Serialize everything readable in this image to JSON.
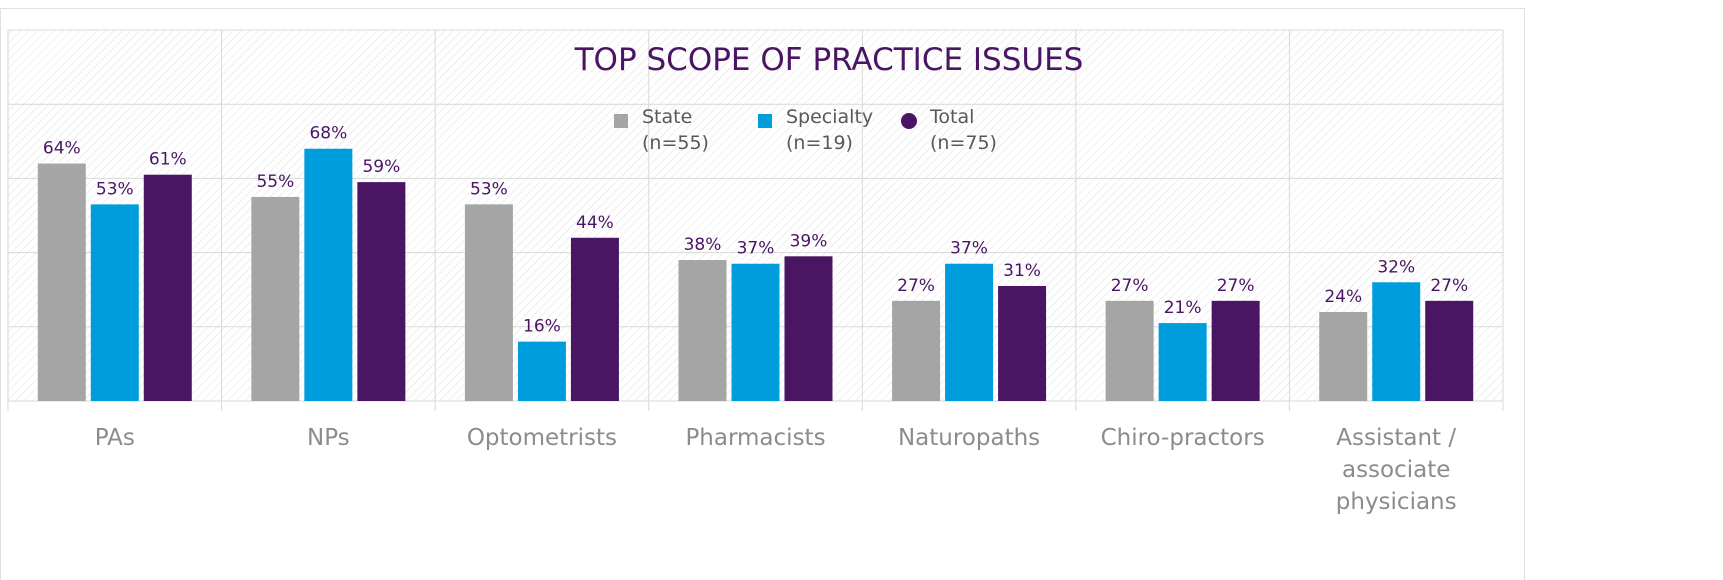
{
  "chart_data": {
    "type": "bar",
    "title": "TOP SCOPE OF PRACTICE ISSUES",
    "categories": [
      "PAs",
      "NPs",
      "Optometrists",
      "Pharmacists",
      "Naturopaths",
      "Chiro-practors",
      "Assistant / associate physicians"
    ],
    "series": [
      {
        "name": "State\n(n=55)",
        "color": "#a5a5a5",
        "marker": "square",
        "values": [
          64,
          55,
          53,
          38,
          27,
          27,
          24
        ],
        "value_labels": [
          "64%",
          "55%",
          "53%",
          "38%",
          "27%",
          "27%",
          "24%"
        ]
      },
      {
        "name": "Specialty\n(n=19)",
        "color": "#009ddc",
        "marker": "square",
        "values": [
          53,
          68,
          16,
          37,
          37,
          21,
          32
        ],
        "value_labels": [
          "53%",
          "68%",
          "16%",
          "37%",
          "37%",
          "21%",
          "32%"
        ]
      },
      {
        "name": "Total\n(n=75)",
        "color": "#4a1563",
        "marker": "circle",
        "values": [
          61,
          59,
          44,
          39,
          31,
          27,
          27
        ],
        "value_labels": [
          "61%",
          "59%",
          "44%",
          "39%",
          "31%",
          "27%",
          "27%"
        ]
      }
    ],
    "ylim": [
      0,
      100
    ],
    "yticks": [
      0,
      20,
      40,
      60,
      80,
      100
    ],
    "grid": true
  }
}
